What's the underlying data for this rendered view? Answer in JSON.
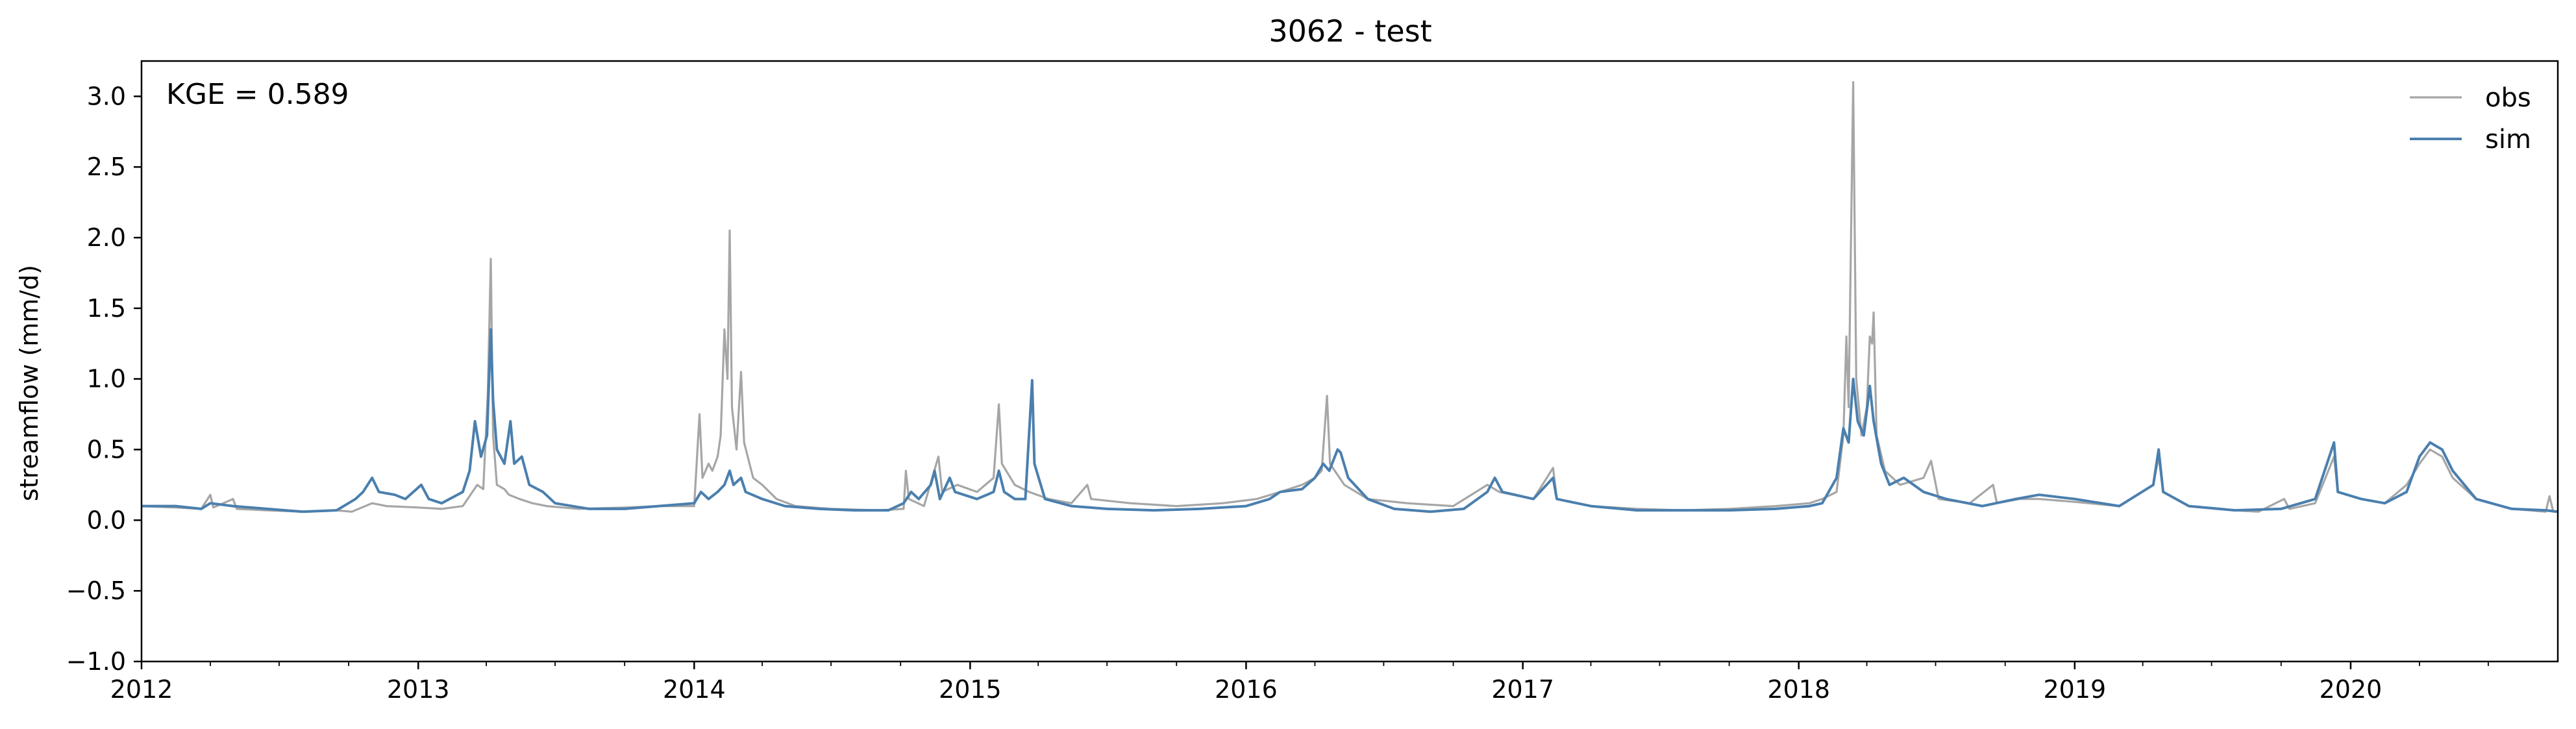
{
  "chart_data": {
    "type": "line",
    "title": "3062 - test",
    "xlabel": "",
    "ylabel": "streamflow (mm/d)",
    "annotation": "KGE = 0.589",
    "xlim": [
      "2012-01-01",
      "2020-10-01"
    ],
    "ylim": [
      -1.0,
      3.25
    ],
    "x_ticks": [
      "2012",
      "2013",
      "2014",
      "2015",
      "2016",
      "2017",
      "2018",
      "2019",
      "2020"
    ],
    "y_ticks": [
      "−1.0",
      "−0.5",
      "0.0",
      "0.5",
      "1.0",
      "1.5",
      "2.0",
      "2.5",
      "3.0"
    ],
    "y_tick_values": [
      -1.0,
      -0.5,
      0.0,
      0.5,
      1.0,
      1.5,
      2.0,
      2.5,
      3.0
    ],
    "legend_position": "top-right",
    "grid": false,
    "series": [
      {
        "name": "obs",
        "color": "#a6a6a6",
        "points": [
          [
            "2012-01-01",
            0.1
          ],
          [
            "2012-02-15",
            0.09
          ],
          [
            "2012-03-20",
            0.08
          ],
          [
            "2012-04-01",
            0.18
          ],
          [
            "2012-04-05",
            0.09
          ],
          [
            "2012-05-01",
            0.15
          ],
          [
            "2012-05-06",
            0.08
          ],
          [
            "2012-06-15",
            0.07
          ],
          [
            "2012-08-01",
            0.06
          ],
          [
            "2012-09-15",
            0.07
          ],
          [
            "2012-10-05",
            0.06
          ],
          [
            "2012-11-01",
            0.12
          ],
          [
            "2012-11-20",
            0.1
          ],
          [
            "2013-01-01",
            0.09
          ],
          [
            "2013-02-01",
            0.08
          ],
          [
            "2013-03-01",
            0.1
          ],
          [
            "2013-03-20",
            0.25
          ],
          [
            "2013-03-28",
            0.22
          ],
          [
            "2013-04-03",
            0.9
          ],
          [
            "2013-04-07",
            1.85
          ],
          [
            "2013-04-10",
            0.6
          ],
          [
            "2013-04-15",
            0.25
          ],
          [
            "2013-04-25",
            0.22
          ],
          [
            "2013-05-01",
            0.18
          ],
          [
            "2013-05-15",
            0.15
          ],
          [
            "2013-06-01",
            0.12
          ],
          [
            "2013-06-20",
            0.1
          ],
          [
            "2013-08-01",
            0.08
          ],
          [
            "2013-10-01",
            0.09
          ],
          [
            "2013-11-15",
            0.1
          ],
          [
            "2014-01-01",
            0.1
          ],
          [
            "2014-01-08",
            0.75
          ],
          [
            "2014-01-12",
            0.3
          ],
          [
            "2014-01-20",
            0.4
          ],
          [
            "2014-01-25",
            0.35
          ],
          [
            "2014-02-01",
            0.45
          ],
          [
            "2014-02-05",
            0.6
          ],
          [
            "2014-02-10",
            1.35
          ],
          [
            "2014-02-14",
            1.0
          ],
          [
            "2014-02-17",
            2.05
          ],
          [
            "2014-02-20",
            0.8
          ],
          [
            "2014-02-26",
            0.5
          ],
          [
            "2014-03-04",
            1.05
          ],
          [
            "2014-03-08",
            0.55
          ],
          [
            "2014-03-20",
            0.3
          ],
          [
            "2014-04-01",
            0.25
          ],
          [
            "2014-04-20",
            0.15
          ],
          [
            "2014-05-15",
            0.1
          ],
          [
            "2014-07-01",
            0.08
          ],
          [
            "2014-09-01",
            0.07
          ],
          [
            "2014-10-05",
            0.08
          ],
          [
            "2014-10-08",
            0.35
          ],
          [
            "2014-10-12",
            0.15
          ],
          [
            "2014-11-01",
            0.1
          ],
          [
            "2014-11-20",
            0.45
          ],
          [
            "2014-11-25",
            0.2
          ],
          [
            "2014-12-15",
            0.25
          ],
          [
            "2015-01-10",
            0.2
          ],
          [
            "2015-02-01",
            0.3
          ],
          [
            "2015-02-08",
            0.82
          ],
          [
            "2015-02-12",
            0.4
          ],
          [
            "2015-03-01",
            0.25
          ],
          [
            "2015-03-20",
            0.2
          ],
          [
            "2015-04-15",
            0.15
          ],
          [
            "2015-05-15",
            0.12
          ],
          [
            "2015-06-05",
            0.25
          ],
          [
            "2015-06-10",
            0.15
          ],
          [
            "2015-08-01",
            0.12
          ],
          [
            "2015-10-01",
            0.1
          ],
          [
            "2015-12-01",
            0.12
          ],
          [
            "2016-01-15",
            0.15
          ],
          [
            "2016-02-15",
            0.2
          ],
          [
            "2016-03-15",
            0.25
          ],
          [
            "2016-04-01",
            0.3
          ],
          [
            "2016-04-10",
            0.35
          ],
          [
            "2016-04-17",
            0.88
          ],
          [
            "2016-04-21",
            0.4
          ],
          [
            "2016-05-10",
            0.25
          ],
          [
            "2016-06-10",
            0.15
          ],
          [
            "2016-08-01",
            0.12
          ],
          [
            "2016-10-01",
            0.1
          ],
          [
            "2016-11-15",
            0.25
          ],
          [
            "2016-12-01",
            0.2
          ],
          [
            "2017-01-15",
            0.15
          ],
          [
            "2017-02-10",
            0.37
          ],
          [
            "2017-02-15",
            0.15
          ],
          [
            "2017-04-01",
            0.1
          ],
          [
            "2017-06-01",
            0.08
          ],
          [
            "2017-08-01",
            0.07
          ],
          [
            "2017-10-01",
            0.08
          ],
          [
            "2017-12-01",
            0.1
          ],
          [
            "2018-01-15",
            0.12
          ],
          [
            "2018-02-01",
            0.15
          ],
          [
            "2018-02-20",
            0.2
          ],
          [
            "2018-03-01",
            0.6
          ],
          [
            "2018-03-05",
            1.3
          ],
          [
            "2018-03-08",
            0.8
          ],
          [
            "2018-03-14",
            3.1
          ],
          [
            "2018-03-18",
            1.0
          ],
          [
            "2018-03-25",
            0.6
          ],
          [
            "2018-04-01",
            0.8
          ],
          [
            "2018-04-05",
            1.3
          ],
          [
            "2018-04-08",
            1.25
          ],
          [
            "2018-04-10",
            1.47
          ],
          [
            "2018-04-14",
            0.6
          ],
          [
            "2018-04-25",
            0.35
          ],
          [
            "2018-05-15",
            0.25
          ],
          [
            "2018-06-15",
            0.3
          ],
          [
            "2018-06-25",
            0.42
          ],
          [
            "2018-07-05",
            0.15
          ],
          [
            "2018-08-15",
            0.12
          ],
          [
            "2018-09-15",
            0.25
          ],
          [
            "2018-09-20",
            0.12
          ],
          [
            "2018-10-20",
            0.15
          ],
          [
            "2018-11-15",
            0.15
          ],
          [
            "2019-01-01",
            0.13
          ],
          [
            "2019-03-01",
            0.1
          ],
          [
            "2019-04-15",
            0.25
          ],
          [
            "2019-04-22",
            0.45
          ],
          [
            "2019-04-28",
            0.2
          ],
          [
            "2019-06-01",
            0.1
          ],
          [
            "2019-08-01",
            0.07
          ],
          [
            "2019-09-01",
            0.06
          ],
          [
            "2019-10-05",
            0.15
          ],
          [
            "2019-10-12",
            0.08
          ],
          [
            "2019-11-15",
            0.12
          ],
          [
            "2019-12-10",
            0.45
          ],
          [
            "2019-12-15",
            0.2
          ],
          [
            "2020-01-15",
            0.15
          ],
          [
            "2020-02-15",
            0.12
          ],
          [
            "2020-03-15",
            0.25
          ],
          [
            "2020-04-01",
            0.4
          ],
          [
            "2020-04-15",
            0.5
          ],
          [
            "2020-05-01",
            0.45
          ],
          [
            "2020-05-15",
            0.3
          ],
          [
            "2020-06-15",
            0.15
          ],
          [
            "2020-08-01",
            0.08
          ],
          [
            "2020-09-15",
            0.06
          ],
          [
            "2020-09-20",
            0.17
          ],
          [
            "2020-09-25",
            0.06
          ],
          [
            "2020-10-01",
            0.06
          ]
        ]
      },
      {
        "name": "sim",
        "color": "#4a7fae",
        "points": [
          [
            "2012-01-01",
            0.1
          ],
          [
            "2012-02-15",
            0.1
          ],
          [
            "2012-03-20",
            0.08
          ],
          [
            "2012-04-01",
            0.12
          ],
          [
            "2012-05-01",
            0.1
          ],
          [
            "2012-06-15",
            0.08
          ],
          [
            "2012-08-01",
            0.06
          ],
          [
            "2012-09-15",
            0.07
          ],
          [
            "2012-10-10",
            0.15
          ],
          [
            "2012-10-20",
            0.2
          ],
          [
            "2012-11-01",
            0.3
          ],
          [
            "2012-11-10",
            0.2
          ],
          [
            "2012-12-01",
            0.18
          ],
          [
            "2012-12-15",
            0.15
          ],
          [
            "2013-01-05",
            0.25
          ],
          [
            "2013-01-15",
            0.15
          ],
          [
            "2013-02-01",
            0.12
          ],
          [
            "2013-03-01",
            0.2
          ],
          [
            "2013-03-10",
            0.35
          ],
          [
            "2013-03-17",
            0.7
          ],
          [
            "2013-03-25",
            0.45
          ],
          [
            "2013-04-02",
            0.6
          ],
          [
            "2013-04-07",
            1.35
          ],
          [
            "2013-04-10",
            0.85
          ],
          [
            "2013-04-15",
            0.5
          ],
          [
            "2013-04-25",
            0.4
          ],
          [
            "2013-05-03",
            0.7
          ],
          [
            "2013-05-08",
            0.4
          ],
          [
            "2013-05-18",
            0.45
          ],
          [
            "2013-05-28",
            0.25
          ],
          [
            "2013-06-15",
            0.2
          ],
          [
            "2013-07-01",
            0.12
          ],
          [
            "2013-08-15",
            0.08
          ],
          [
            "2013-10-01",
            0.08
          ],
          [
            "2013-11-15",
            0.1
          ],
          [
            "2014-01-01",
            0.12
          ],
          [
            "2014-01-10",
            0.2
          ],
          [
            "2014-01-20",
            0.15
          ],
          [
            "2014-02-01",
            0.2
          ],
          [
            "2014-02-10",
            0.25
          ],
          [
            "2014-02-17",
            0.35
          ],
          [
            "2014-02-22",
            0.25
          ],
          [
            "2014-03-04",
            0.3
          ],
          [
            "2014-03-10",
            0.2
          ],
          [
            "2014-04-01",
            0.15
          ],
          [
            "2014-05-01",
            0.1
          ],
          [
            "2014-06-15",
            0.08
          ],
          [
            "2014-08-01",
            0.07
          ],
          [
            "2014-09-15",
            0.07
          ],
          [
            "2014-10-05",
            0.12
          ],
          [
            "2014-10-15",
            0.2
          ],
          [
            "2014-10-25",
            0.15
          ],
          [
            "2014-11-10",
            0.25
          ],
          [
            "2014-11-15",
            0.35
          ],
          [
            "2014-11-22",
            0.15
          ],
          [
            "2014-12-05",
            0.3
          ],
          [
            "2014-12-12",
            0.2
          ],
          [
            "2015-01-10",
            0.15
          ],
          [
            "2015-02-01",
            0.2
          ],
          [
            "2015-02-08",
            0.35
          ],
          [
            "2015-02-15",
            0.2
          ],
          [
            "2015-03-01",
            0.15
          ],
          [
            "2015-03-15",
            0.15
          ],
          [
            "2015-03-24",
            0.99
          ],
          [
            "2015-03-27",
            0.4
          ],
          [
            "2015-04-10",
            0.15
          ],
          [
            "2015-05-15",
            0.1
          ],
          [
            "2015-07-01",
            0.08
          ],
          [
            "2015-09-01",
            0.07
          ],
          [
            "2015-11-01",
            0.08
          ],
          [
            "2016-01-01",
            0.1
          ],
          [
            "2016-02-01",
            0.15
          ],
          [
            "2016-02-15",
            0.2
          ],
          [
            "2016-03-15",
            0.22
          ],
          [
            "2016-04-01",
            0.3
          ],
          [
            "2016-04-12",
            0.4
          ],
          [
            "2016-04-20",
            0.35
          ],
          [
            "2016-05-01",
            0.5
          ],
          [
            "2016-05-05",
            0.48
          ],
          [
            "2016-05-15",
            0.3
          ],
          [
            "2016-06-10",
            0.15
          ],
          [
            "2016-07-15",
            0.08
          ],
          [
            "2016-09-01",
            0.06
          ],
          [
            "2016-10-15",
            0.08
          ],
          [
            "2016-11-15",
            0.2
          ],
          [
            "2016-11-25",
            0.3
          ],
          [
            "2016-12-05",
            0.2
          ],
          [
            "2017-01-15",
            0.15
          ],
          [
            "2017-02-10",
            0.3
          ],
          [
            "2017-02-15",
            0.15
          ],
          [
            "2017-04-01",
            0.1
          ],
          [
            "2017-06-01",
            0.07
          ],
          [
            "2017-08-01",
            0.07
          ],
          [
            "2017-10-01",
            0.07
          ],
          [
            "2017-12-01",
            0.08
          ],
          [
            "2018-01-15",
            0.1
          ],
          [
            "2018-02-01",
            0.12
          ],
          [
            "2018-02-20",
            0.3
          ],
          [
            "2018-03-01",
            0.65
          ],
          [
            "2018-03-08",
            0.55
          ],
          [
            "2018-03-14",
            1.0
          ],
          [
            "2018-03-20",
            0.7
          ],
          [
            "2018-03-28",
            0.6
          ],
          [
            "2018-04-05",
            0.95
          ],
          [
            "2018-04-10",
            0.7
          ],
          [
            "2018-04-20",
            0.4
          ],
          [
            "2018-05-01",
            0.25
          ],
          [
            "2018-05-20",
            0.3
          ],
          [
            "2018-06-15",
            0.2
          ],
          [
            "2018-07-15",
            0.15
          ],
          [
            "2018-09-01",
            0.1
          ],
          [
            "2018-10-15",
            0.15
          ],
          [
            "2018-11-15",
            0.18
          ],
          [
            "2019-01-01",
            0.15
          ],
          [
            "2019-03-01",
            0.1
          ],
          [
            "2019-04-15",
            0.25
          ],
          [
            "2019-04-22",
            0.5
          ],
          [
            "2019-04-28",
            0.2
          ],
          [
            "2019-06-01",
            0.1
          ],
          [
            "2019-08-01",
            0.07
          ],
          [
            "2019-10-01",
            0.08
          ],
          [
            "2019-11-15",
            0.15
          ],
          [
            "2019-12-10",
            0.55
          ],
          [
            "2019-12-15",
            0.2
          ],
          [
            "2020-01-15",
            0.15
          ],
          [
            "2020-02-15",
            0.12
          ],
          [
            "2020-03-15",
            0.2
          ],
          [
            "2020-04-01",
            0.45
          ],
          [
            "2020-04-15",
            0.55
          ],
          [
            "2020-05-01",
            0.5
          ],
          [
            "2020-05-15",
            0.35
          ],
          [
            "2020-06-15",
            0.15
          ],
          [
            "2020-08-01",
            0.08
          ],
          [
            "2020-09-15",
            0.07
          ],
          [
            "2020-10-01",
            0.06
          ]
        ]
      }
    ]
  }
}
